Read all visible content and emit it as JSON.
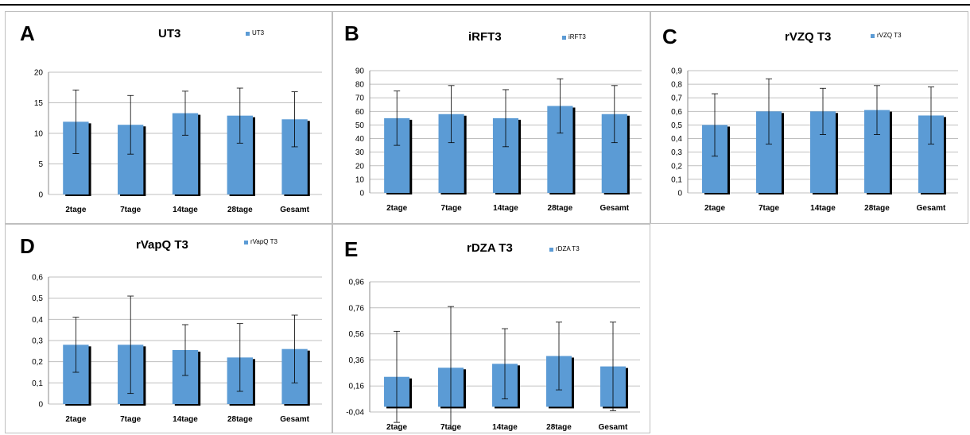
{
  "colors": {
    "bar": "#5b9bd5",
    "shadow": "#000000",
    "grid": "#bfbfbf"
  },
  "chart_data": [
    {
      "panel": "A",
      "title": "UT3",
      "type": "bar",
      "legend": "UT3",
      "categories": [
        "2tage",
        "7tage",
        "14tage",
        "28tage",
        "Gesamt"
      ],
      "series": [
        {
          "name": "UT3",
          "values": [
            11.9,
            11.4,
            13.3,
            12.9,
            12.3
          ],
          "error": [
            5.2,
            4.8,
            3.6,
            4.5,
            4.5
          ]
        }
      ],
      "ylim": [
        0,
        20
      ],
      "yticks": [
        "0",
        "5",
        "10",
        "15",
        "20"
      ],
      "grid": true
    },
    {
      "panel": "B",
      "title": "iRFT3",
      "type": "bar",
      "legend": "iRFT3",
      "categories": [
        "2tage",
        "7tage",
        "14tage",
        "28tage",
        "Gesamt"
      ],
      "series": [
        {
          "name": "iRFT3",
          "values": [
            55,
            58,
            55,
            64,
            58
          ],
          "error": [
            20,
            21,
            21,
            20,
            21
          ]
        }
      ],
      "ylim": [
        0,
        90
      ],
      "yticks": [
        "0",
        "10",
        "20",
        "30",
        "40",
        "50",
        "60",
        "70",
        "80",
        "90"
      ],
      "grid": true
    },
    {
      "panel": "C",
      "title": "rVZQ T3",
      "type": "bar",
      "legend": "rVZQ T3",
      "categories": [
        "2tage",
        "7tage",
        "14tage",
        "28tage",
        "Gesamt"
      ],
      "series": [
        {
          "name": "rVZQ T3",
          "values": [
            0.5,
            0.6,
            0.6,
            0.61,
            0.57
          ],
          "error": [
            0.23,
            0.24,
            0.17,
            0.18,
            0.21
          ]
        }
      ],
      "ylim": [
        0,
        0.9
      ],
      "yticks": [
        "0",
        "0,1",
        "0,2",
        "0,3",
        "0,4",
        "0,5",
        "0,6",
        "0,7",
        "0,8",
        "0,9"
      ],
      "grid": true
    },
    {
      "panel": "D",
      "title": "rVapQ T3",
      "type": "bar",
      "legend": "rVapQ T3",
      "categories": [
        "2tage",
        "7tage",
        "14tage",
        "28tage",
        "Gesamt"
      ],
      "series": [
        {
          "name": "rVapQ T3",
          "values": [
            0.28,
            0.28,
            0.255,
            0.22,
            0.26
          ],
          "error": [
            0.13,
            0.23,
            0.12,
            0.16,
            0.16
          ]
        }
      ],
      "ylim": [
        0,
        0.6
      ],
      "yticks": [
        "0",
        "0,1",
        "0,2",
        "0,3",
        "0,4",
        "0,5",
        "0,6"
      ],
      "grid": true
    },
    {
      "panel": "E",
      "title": "rDZA T3",
      "type": "bar",
      "legend": "rDZA T3",
      "categories": [
        "2tage",
        "7tage",
        "14tage",
        "28tage",
        "Gesamt"
      ],
      "series": [
        {
          "name": "rDZA T3",
          "values": [
            0.23,
            0.3,
            0.33,
            0.39,
            0.31
          ],
          "error": [
            0.35,
            0.47,
            0.27,
            0.26,
            0.34
          ]
        }
      ],
      "ylim": [
        -0.04,
        0.96
      ],
      "yticks": [
        "-0,04",
        "0,16",
        "0,36",
        "0,56",
        "0,76",
        "0,96"
      ],
      "grid": true
    }
  ]
}
